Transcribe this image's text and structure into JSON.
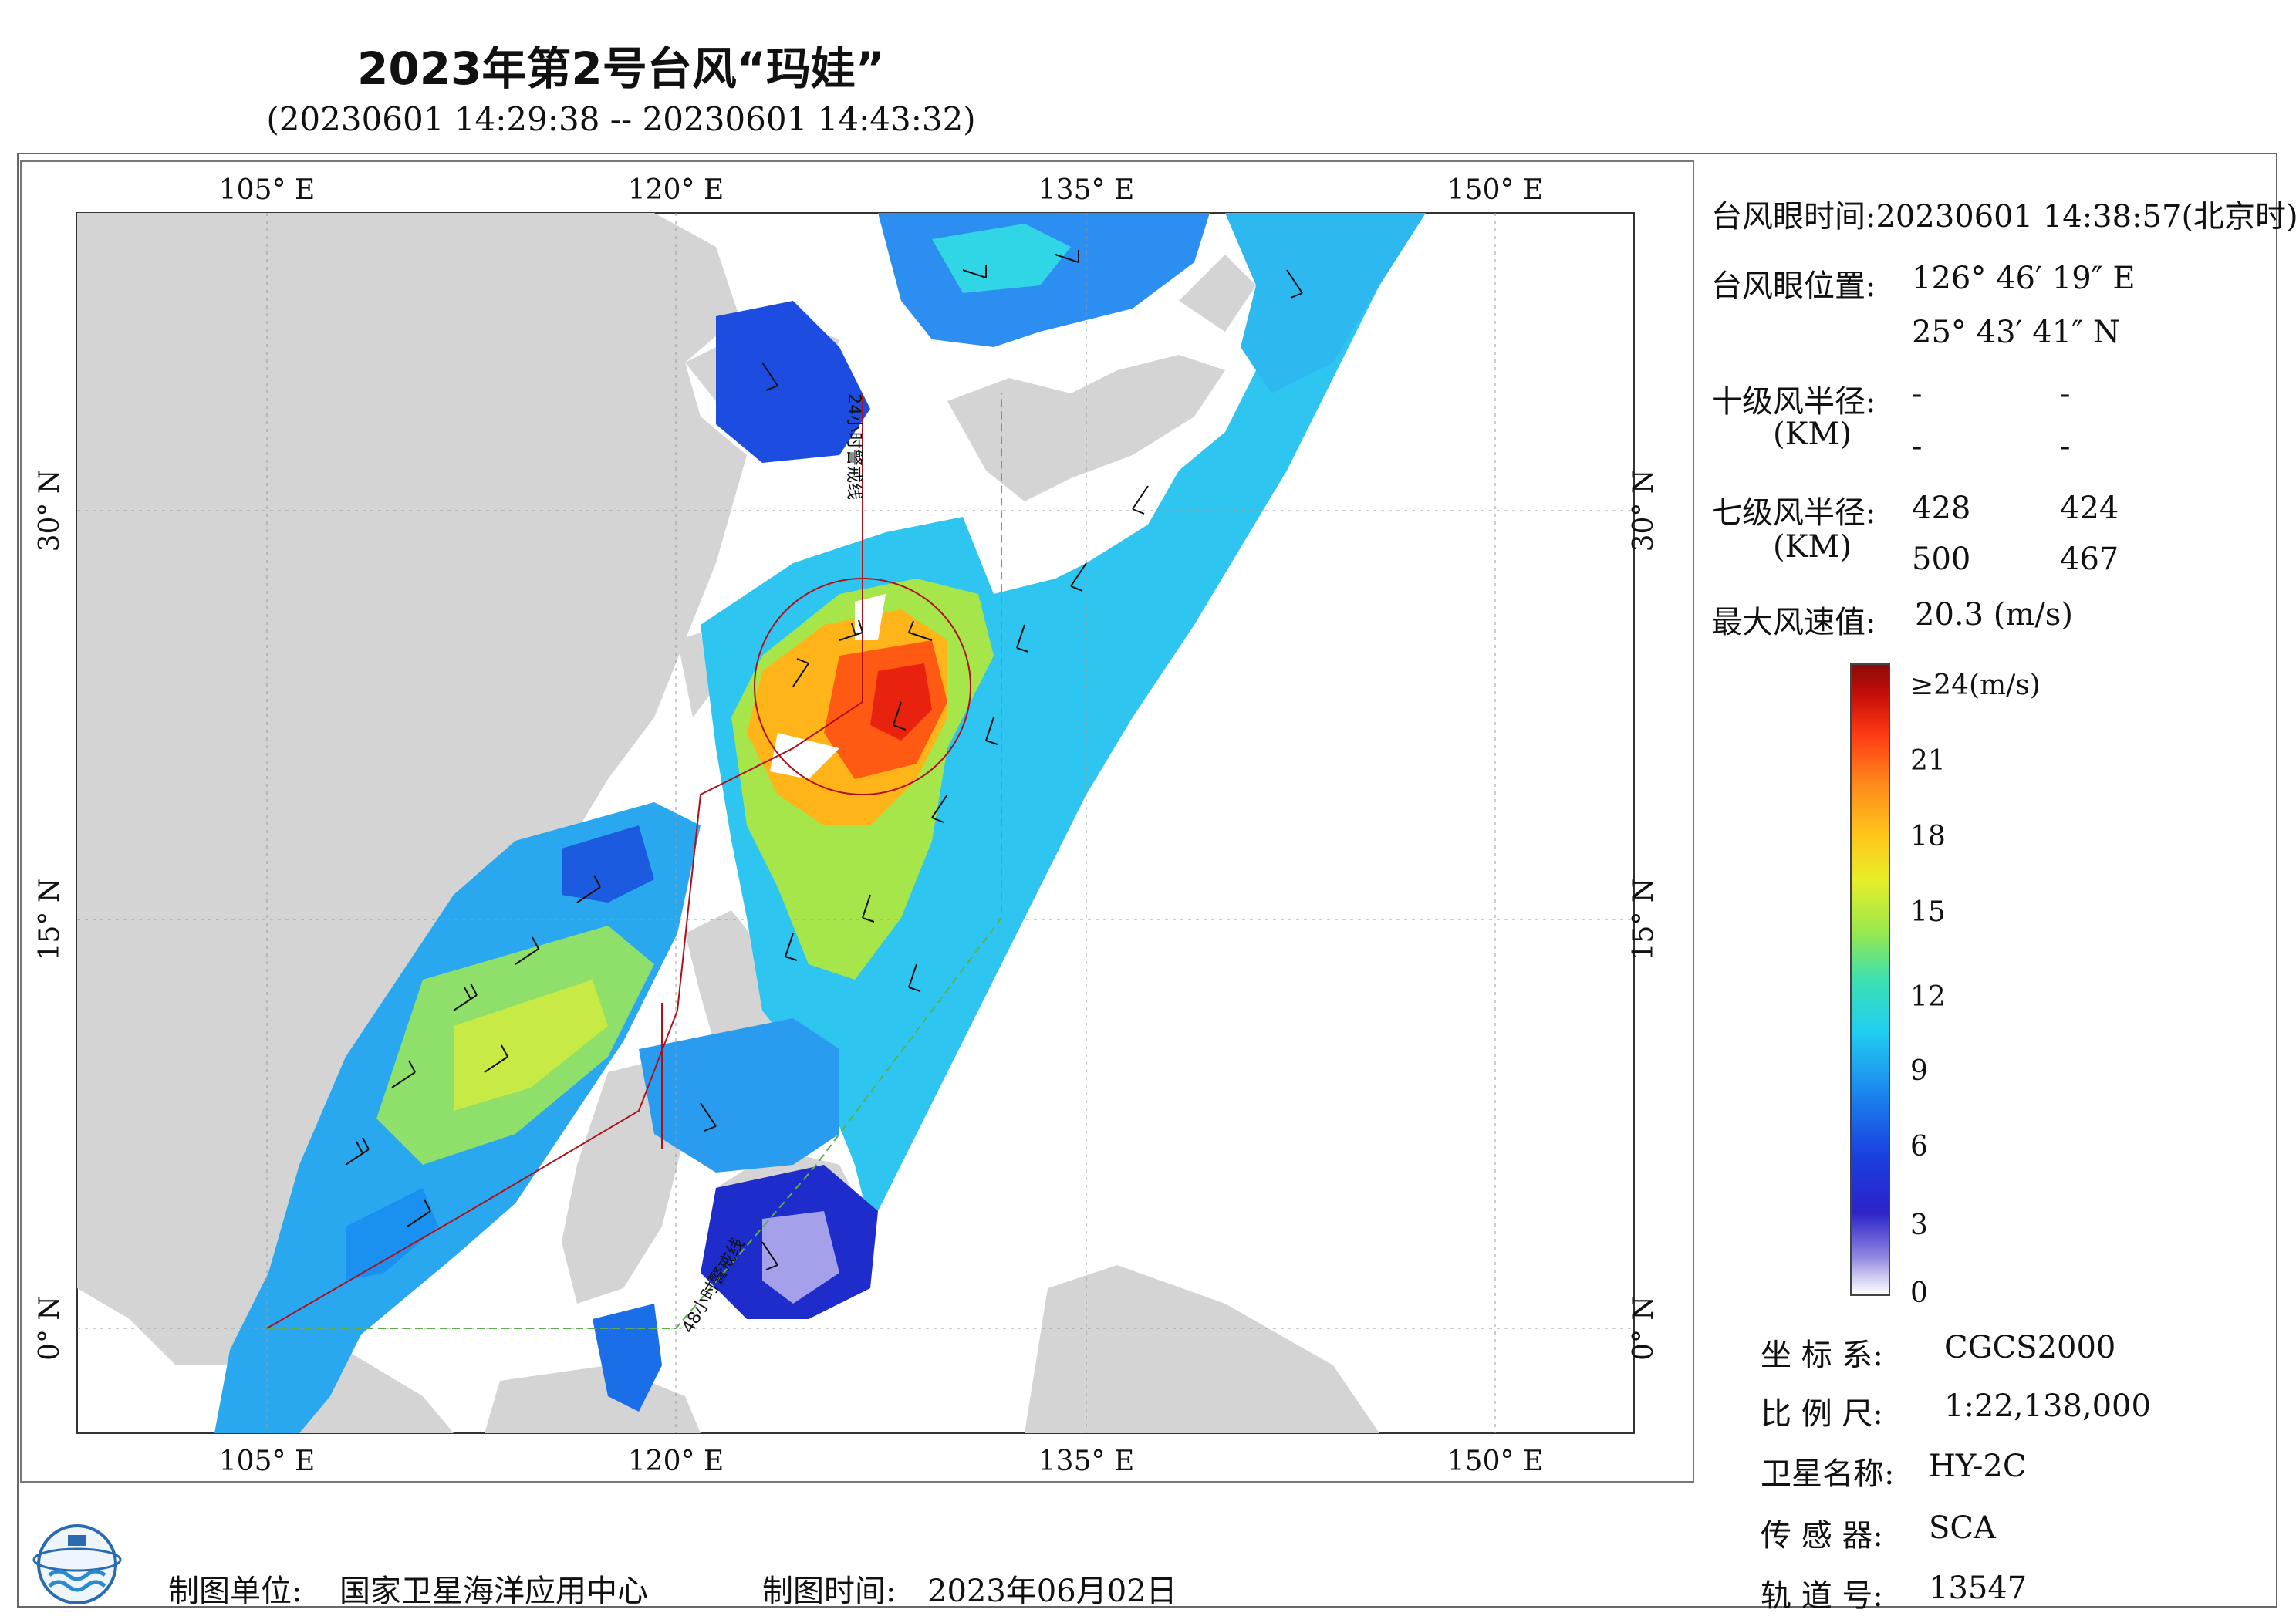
{
  "title": "2023年第2号台风“玛娃”",
  "subtitle": "(20230601 14:29:38 -- 20230601 14:43:32)",
  "map": {
    "lon_top": [
      "105° E",
      "120° E",
      "135° E",
      "150° E"
    ],
    "lon_bottom": [
      "105° E",
      "120° E",
      "135° E",
      "150° E"
    ],
    "lat_left": [
      "30° N",
      "15° N",
      "0° N"
    ],
    "lat_right": [
      "30° N",
      "15° N",
      "0° N"
    ],
    "track_label_1": "24小时警戒线",
    "track_label_2": "48小时警戒线",
    "colors": {
      "land": "#d4d4d4",
      "sea": "#ffffff",
      "warning_24": "#b0101a",
      "warning_48": "#5ab04a"
    }
  },
  "info": {
    "eye_time_label": "台风眼时间:",
    "eye_time_value": "20230601 14:38:57(北京时)",
    "eye_pos_label": "台风眼位置:",
    "eye_lon": "126° 46′ 19″ E",
    "eye_lat": "25° 43′ 41″ N",
    "r10_label": "十级风半径:",
    "r10_unit": "(KM)",
    "r10_values": [
      "-",
      "-",
      "-",
      "-"
    ],
    "r7_label": "七级风半径:",
    "r7_unit": "(KM)",
    "r7_values": [
      "428",
      "424",
      "500",
      "467"
    ],
    "max_wind_label": "最大风速值:",
    "max_wind_value": "20.3 (m/s)"
  },
  "colorbar": {
    "ticks": [
      "≥24(m/s)",
      "21",
      "18",
      "15",
      "12",
      "9",
      "6",
      "3",
      "0"
    ]
  },
  "meta": {
    "crs_label": "坐 标 系:",
    "crs_value": "CGCS2000",
    "scale_label": "比 例 尺:",
    "scale_value": "1:22,138,000",
    "sat_label": "卫星名称:",
    "sat_value": "HY-2C",
    "sensor_label": "传 感 器:",
    "sensor_value": "SCA",
    "orbit_label": "轨 道 号:",
    "orbit_value": "13547"
  },
  "footer": {
    "org_label": "制图单位:",
    "org_value": "国家卫星海洋应用中心",
    "date_label": "制图时间:",
    "date_value": "2023年06月02日"
  }
}
